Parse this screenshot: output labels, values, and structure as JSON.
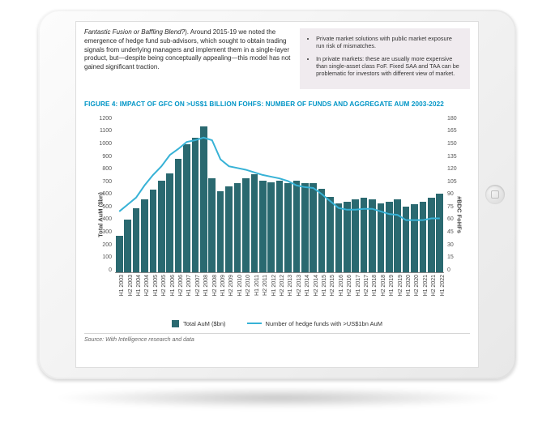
{
  "paragraph": {
    "italic_lead": "Fantastic Fusion or Baffling Blend?",
    "rest": "). Around 2015-19 we noted the emergence of hedge fund sub-advisors, which sought to obtain trading signals from underlying managers and implement them in a single-layer product, but—despite being conceptually appealing—this model has not gained significant traction."
  },
  "box_bullets": [
    "Private market solutions with public market exposure run risk of mismatches.",
    "In private markets: these are usually more expensive than single-asset class FoF. Fixed SAA and TAA can be problematic for investors with different view of market."
  ],
  "figure_title": "FIGURE 4: IMPACT OF GFC ON >US$1 BILLION FOHFS: NUMBER OF FUNDS AND AGGREGATE AUM 2003-2022",
  "chart": {
    "type": "bar+line (dual axis)",
    "background_color": "#ffffff",
    "bar_color": "#2a6970",
    "line_color": "#37b2d6",
    "line_width": 2,
    "y_left_label": "Total AuM ($bn)",
    "y_right_label": "#BDC FoHFs",
    "y_left": {
      "min": 0,
      "max": 1200,
      "step": 100
    },
    "y_right": {
      "min": 0,
      "max": 180,
      "step": 15
    },
    "categories": [
      "H1 2003",
      "H2 2003",
      "H1 2004",
      "H2 2004",
      "H1 2005",
      "H2 2005",
      "H1 2006",
      "H2 2006",
      "H1 2007",
      "H2 2007",
      "H1 2008",
      "H2 2008",
      "H1 2009",
      "H2 2009",
      "H1 2010",
      "H2 2010",
      "H1 2011",
      "H2 2011",
      "H1 2012",
      "H2 2012",
      "H1 2013",
      "H2 2013",
      "H1 2014",
      "H2 2014",
      "H1 2015",
      "H2 2015",
      "H1 2016",
      "H2 2016",
      "H1 2017",
      "H2 2017",
      "H1 2018",
      "H2 2018",
      "H1 2019",
      "H2 2019",
      "H1 2020",
      "H2 2020",
      "H1 2021",
      "H2 2021",
      "H1 2022"
    ],
    "bar_values": [
      280,
      400,
      490,
      560,
      630,
      700,
      760,
      870,
      980,
      1030,
      1120,
      720,
      620,
      660,
      680,
      720,
      750,
      700,
      690,
      700,
      680,
      700,
      680,
      680,
      640,
      580,
      530,
      540,
      560,
      570,
      560,
      530,
      540,
      560,
      500,
      520,
      540,
      570,
      600
    ],
    "line_values": [
      70,
      78,
      86,
      100,
      112,
      122,
      135,
      142,
      150,
      152,
      155,
      152,
      130,
      122,
      120,
      118,
      115,
      112,
      110,
      108,
      105,
      100,
      98,
      97,
      90,
      82,
      74,
      72,
      72,
      73,
      73,
      70,
      67,
      66,
      60,
      60,
      60,
      62,
      62
    ]
  },
  "legend": {
    "bar": "Total AuM ($bn)",
    "line": "Number of hedge funds with >US$1bn AuM"
  },
  "source": "Source: With Intelligence research and data"
}
